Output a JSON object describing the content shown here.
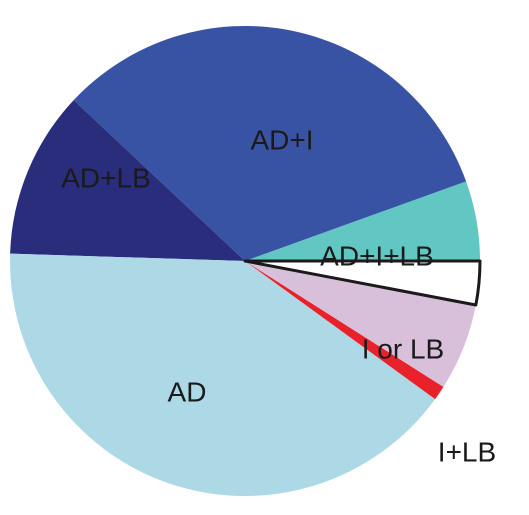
{
  "chart_data": {
    "type": "pie",
    "slices": [
      {
        "label": "AD+I+LB",
        "value": 5.5,
        "color": "#62c6c2"
      },
      {
        "label": "AD+I",
        "value": 32.5,
        "color": "#3853a4"
      },
      {
        "label": "AD+LB",
        "value": 11.5,
        "color": "#2a2d7c"
      },
      {
        "label": "AD",
        "value": 40.5,
        "color": "#add8e6"
      },
      {
        "label": "I+LB",
        "value": 1.0,
        "color": "#e8212a"
      },
      {
        "label": "I or LB",
        "value": 6.0,
        "color": "#d8bfda"
      },
      {
        "label": "",
        "value": 3.0,
        "color": "#ffffff",
        "outlined": true
      }
    ]
  }
}
